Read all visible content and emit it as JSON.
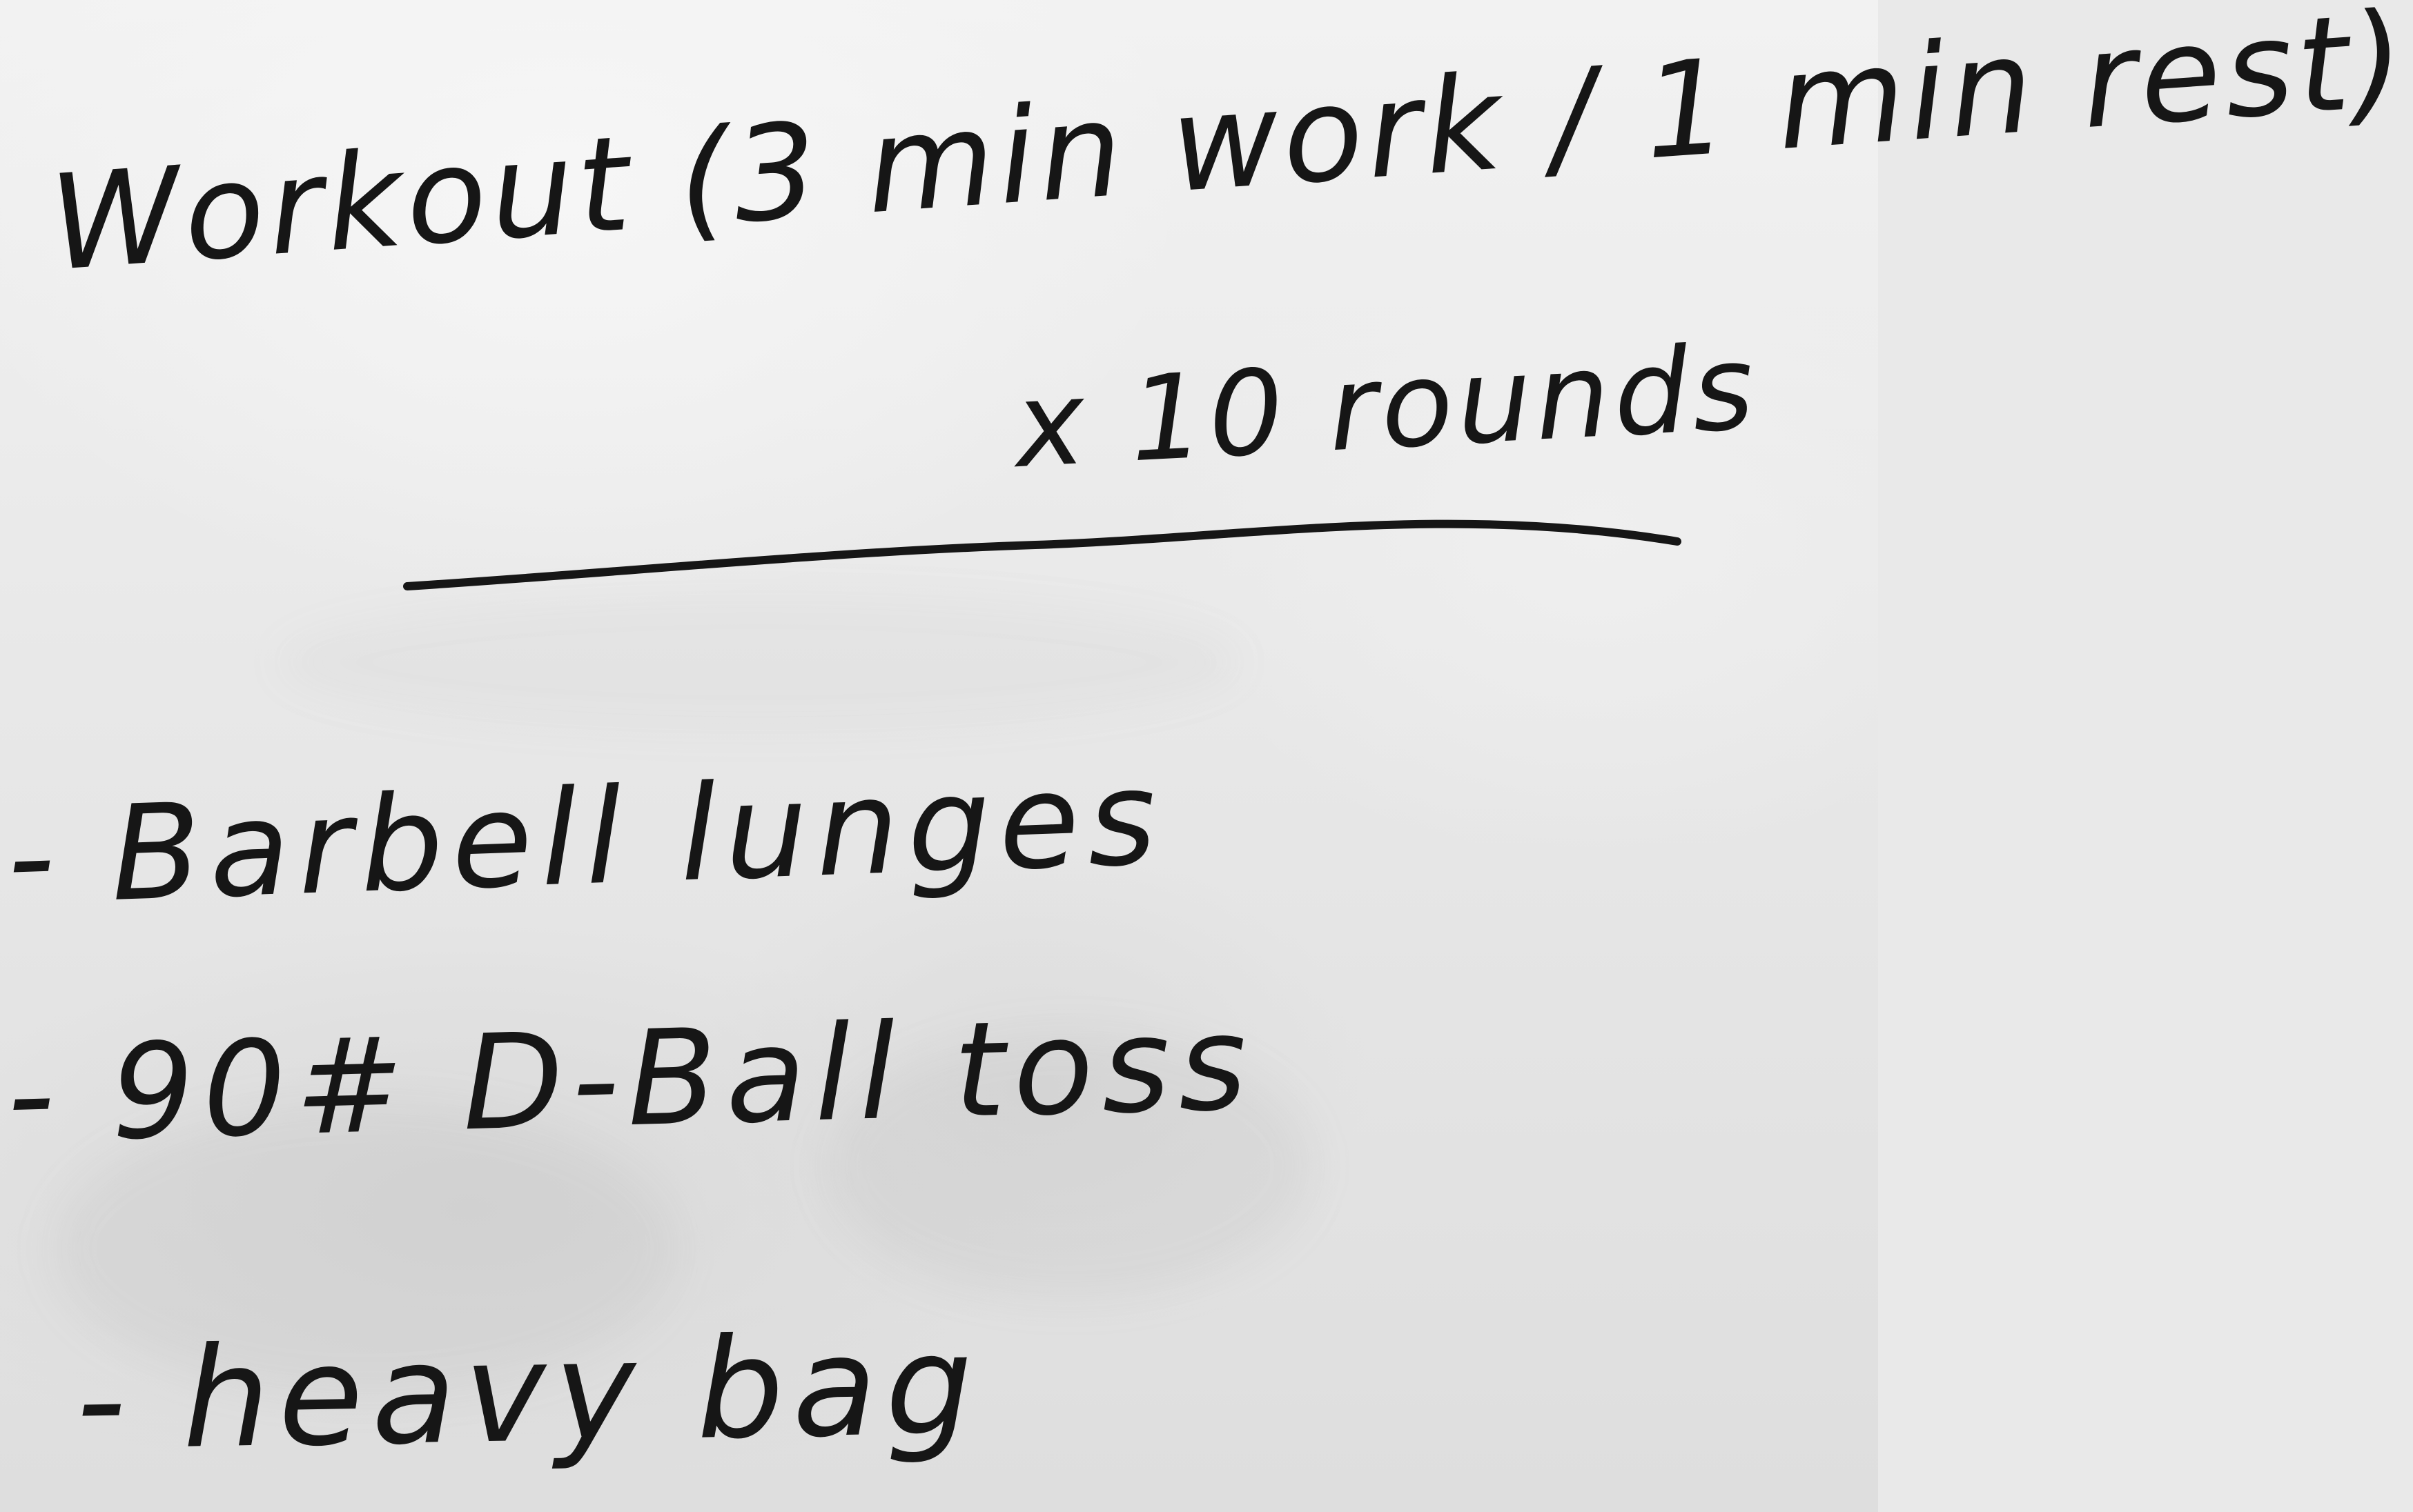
{
  "board": {
    "title": "Workout (3 min work / 1 min rest)",
    "rounds": "x 10 rounds",
    "items": [
      {
        "dash": "-",
        "text": "Barbell lunges"
      },
      {
        "dash": "-",
        "text": "90# D-Ball toss"
      },
      {
        "dash": "-",
        "text": "heavy bag"
      }
    ]
  },
  "colors": {
    "ink": "#161616",
    "board": "#e9e9e9"
  }
}
